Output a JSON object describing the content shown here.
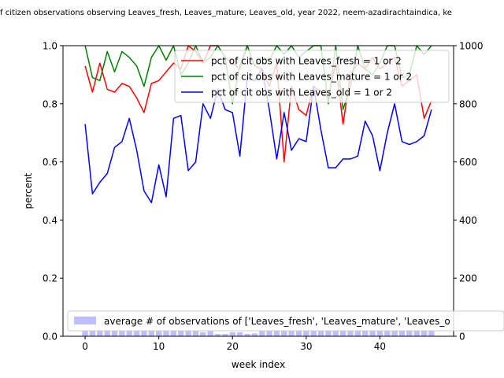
{
  "chart_data": {
    "type": "line",
    "title": "f citizen observations observing Leaves_fresh, Leaves_mature, Leaves_old, year 2022, neem-azadirachtaindica, ke",
    "xlabel": "week index",
    "ylabel": "percent",
    "xlim": [
      -3.0,
      50.0
    ],
    "ylim": [
      0,
      1.0
    ],
    "y2lim": [
      0,
      1000
    ],
    "xticks": [
      0,
      10,
      20,
      30,
      40
    ],
    "yticks": [
      "0.0",
      "0.2",
      "0.4",
      "0.6",
      "0.8",
      "1.0"
    ],
    "y2ticks": [
      "0",
      "200",
      "400",
      "600",
      "800",
      "1000"
    ],
    "grid": false,
    "legend_placement": "upper-right",
    "legend2_placement": "lower-right",
    "x": [
      0,
      1,
      2,
      3,
      4,
      5,
      6,
      7,
      8,
      9,
      10,
      11,
      12,
      13,
      14,
      15,
      16,
      17,
      18,
      19,
      20,
      21,
      22,
      23,
      24,
      25,
      26,
      27,
      28,
      29,
      30,
      31,
      32,
      33,
      34,
      35,
      36,
      37,
      38,
      39,
      40,
      41,
      42,
      43,
      44,
      45,
      46,
      47
    ],
    "series": [
      {
        "name": "pct of cit obs with Leaves_fresh = 1 or 2",
        "color": "#ff0000",
        "axis": "left",
        "values": [
          0.93,
          0.84,
          0.94,
          0.85,
          0.84,
          0.87,
          0.86,
          0.82,
          0.77,
          0.87,
          0.88,
          0.91,
          0.94,
          0.92,
          1.0,
          0.98,
          0.94,
          1.0,
          1.0,
          0.96,
          0.94,
          0.92,
          1.0,
          0.93,
          0.92,
          0.86,
          0.94,
          0.6,
          0.86,
          0.78,
          0.76,
          0.86,
          0.84,
          0.82,
          0.94,
          0.73,
          0.9,
          0.94,
          0.92,
          0.96,
          0.92,
          0.94,
          0.96,
          0.86,
          0.88,
          0.9,
          0.75,
          0.81
        ]
      },
      {
        "name": "pct of cit obs with Leaves_mature = 1 or 2",
        "color": "#008000",
        "axis": "left",
        "values": [
          1.0,
          0.89,
          0.88,
          0.98,
          0.91,
          0.98,
          0.96,
          0.93,
          0.86,
          0.96,
          1.0,
          0.95,
          1.0,
          0.9,
          0.94,
          1.0,
          0.94,
          0.96,
          1.0,
          0.96,
          0.8,
          0.93,
          1.0,
          0.93,
          0.96,
          0.95,
          1.0,
          0.97,
          1.0,
          0.96,
          0.98,
          1.0,
          1.0,
          0.8,
          1.0,
          0.78,
          0.86,
          1.0,
          0.92,
          0.9,
          0.94,
          1.0,
          1.0,
          0.89,
          0.9,
          1.0,
          0.97,
          1.0
        ]
      },
      {
        "name": "pct of cit obs with Leaves_old = 1 or 2",
        "color": "#0000ff",
        "axis": "left",
        "values": [
          0.73,
          0.49,
          0.53,
          0.56,
          0.65,
          0.67,
          0.75,
          0.64,
          0.5,
          0.46,
          0.59,
          0.48,
          0.75,
          0.76,
          0.57,
          0.6,
          0.8,
          0.75,
          0.85,
          0.78,
          0.77,
          0.62,
          0.89,
          0.88,
          0.92,
          0.78,
          0.61,
          0.77,
          0.64,
          0.68,
          0.67,
          0.86,
          0.71,
          0.58,
          0.58,
          0.61,
          0.61,
          0.62,
          0.74,
          0.69,
          0.57,
          0.7,
          0.8,
          0.67,
          0.66,
          0.67,
          0.69,
          0.78
        ]
      },
      {
        "name": "average # of observations of ['Leaves_fresh', 'Leaves_mature', 'Leaves_o",
        "color": "#0000ff",
        "alpha": 0.25,
        "type": "bar",
        "axis": "right",
        "values": [
          18,
          18,
          18,
          18,
          18,
          18,
          18,
          18,
          18,
          18,
          18,
          18,
          18,
          18,
          18,
          18,
          14,
          18,
          8,
          8,
          14,
          14,
          8,
          10,
          18,
          18,
          18,
          18,
          18,
          18,
          18,
          18,
          18,
          18,
          18,
          18,
          18,
          18,
          18,
          18,
          18,
          18,
          18,
          18,
          18,
          18,
          18,
          18
        ]
      }
    ]
  }
}
